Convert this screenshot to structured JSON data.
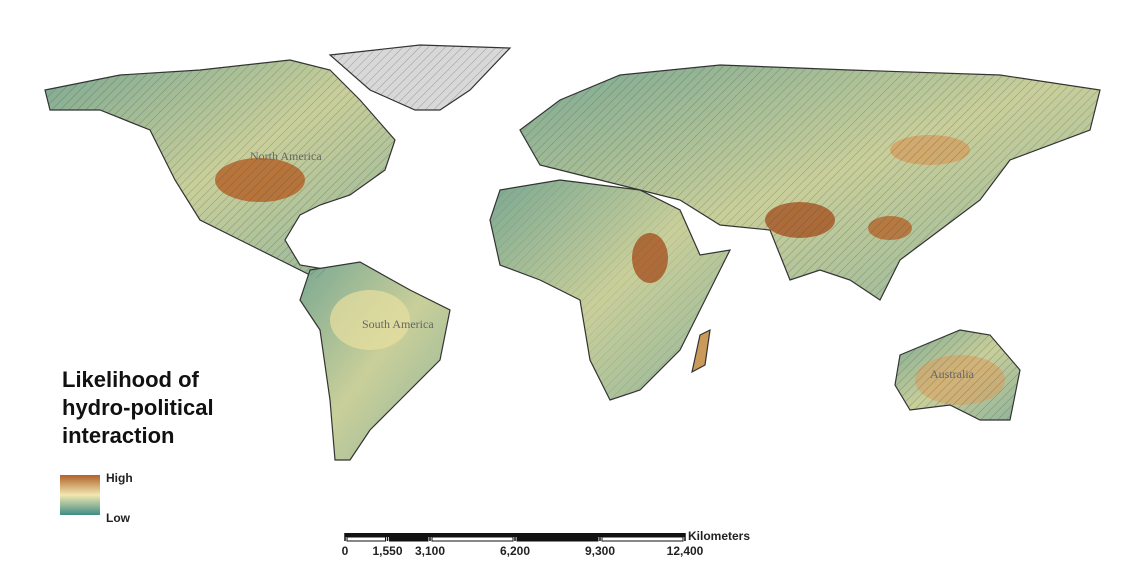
{
  "map": {
    "labels": [
      "North America",
      "South America",
      "Australia"
    ]
  },
  "legend": {
    "title": "Likelihood of hydro-political interaction",
    "high": "High",
    "low": "Low"
  },
  "scale_bar": {
    "unit": "Kilometers",
    "ticks": [
      0,
      {
        "value": 1550,
        "label": "1,550"
      },
      {
        "value": 3100,
        "label": "3,100"
      },
      {
        "value": 6200,
        "label": "6,200"
      },
      {
        "value": 9300,
        "label": "9,300"
      },
      {
        "value": 12400,
        "label": "12,400"
      }
    ]
  }
}
